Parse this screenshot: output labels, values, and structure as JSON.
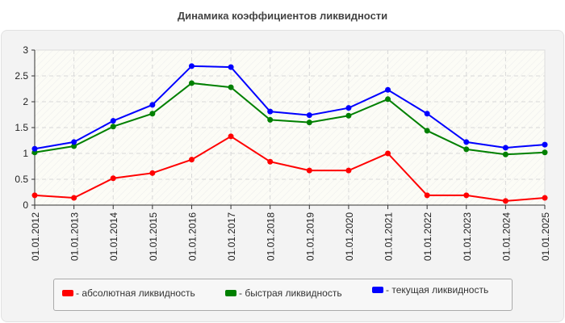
{
  "title": "Динамика коэффициентов ликвидности",
  "legend": [
    {
      "label": "- абсолютная ликвидность",
      "color": "#ff0000"
    },
    {
      "label": "- быстрая ликвидность",
      "color": "#008000"
    },
    {
      "label": "- текущая ликвидность",
      "color": "#0000ff"
    }
  ],
  "chart_data": {
    "type": "line",
    "title": "Динамика коэффициентов ликвидности",
    "xlabel": "",
    "ylabel": "",
    "ylim": [
      0,
      3
    ],
    "yticks": [
      "0",
      "0.5",
      "1",
      "1.5",
      "2",
      "2.5",
      "3"
    ],
    "grid": true,
    "legend_position": "bottom",
    "categories": [
      "01.01.2012",
      "01.01.2013",
      "01.01.2014",
      "01.01.2015",
      "01.01.2016",
      "01.01.2017",
      "01.01.2018",
      "01.01.2019",
      "01.01.2020",
      "01.01.2021",
      "01.01.2022",
      "01.01.2023",
      "01.01.2024",
      "01.01.2025"
    ],
    "series": [
      {
        "name": "абсолютная ликвидность",
        "color": "#ff0000",
        "values": [
          0.19,
          0.14,
          0.52,
          0.62,
          0.88,
          1.33,
          0.84,
          0.67,
          0.67,
          1.0,
          0.19,
          0.19,
          0.08,
          0.14
        ]
      },
      {
        "name": "быстрая ликвидность",
        "color": "#008000",
        "values": [
          1.02,
          1.14,
          1.52,
          1.77,
          2.36,
          2.28,
          1.65,
          1.6,
          1.73,
          2.05,
          1.44,
          1.08,
          0.98,
          1.02
        ]
      },
      {
        "name": "текущая ликвидность",
        "color": "#0000ff",
        "values": [
          1.09,
          1.22,
          1.63,
          1.94,
          2.69,
          2.67,
          1.81,
          1.74,
          1.88,
          2.23,
          1.77,
          1.22,
          1.11,
          1.17
        ]
      }
    ]
  }
}
